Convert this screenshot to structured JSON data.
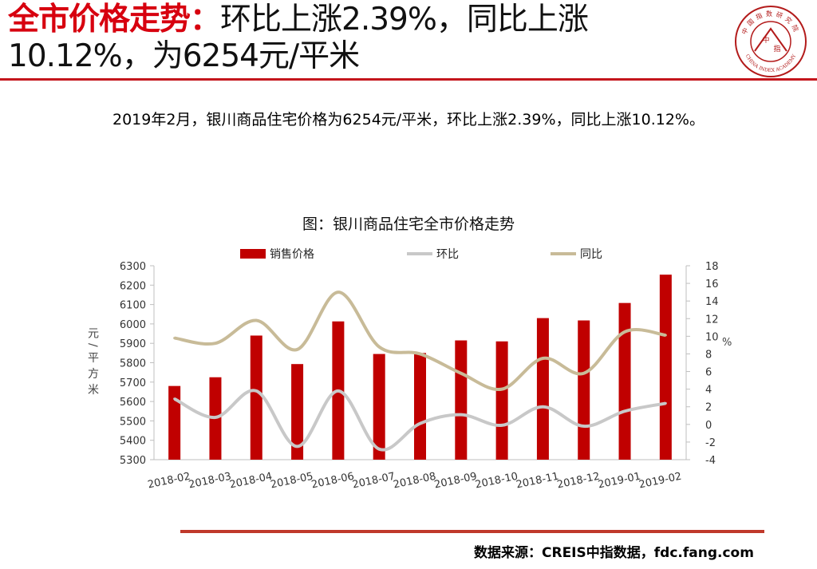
{
  "header": {
    "title_red": "全市价格走势：",
    "title_line1": "环比上涨2.39%，同比上涨",
    "title_line2": "10.12%，为6254元/平米"
  },
  "logo": {
    "text_top": "中国指数研究院",
    "text_bottom": "CHINA INDEX ACADEMY",
    "center_text_1": "中",
    "center_text_2": "指"
  },
  "summary": "2019年2月，银川商品住宅价格为6254元/平米，环比上涨2.39%，同比上涨10.12%。",
  "colors": {
    "bar": "#c00000",
    "mom": "#c8c8c8",
    "yoy": "#c8bb98",
    "accent": "#c4161c"
  },
  "chart_data": {
    "type": "bar",
    "title": "图：银川商品住宅全市价格走势",
    "categories": [
      "2018-02",
      "2018-03",
      "2018-04",
      "2018-05",
      "2018-06",
      "2018-07",
      "2018-08",
      "2018-09",
      "2018-10",
      "2018-11",
      "2018-12",
      "2019-01",
      "2019-02"
    ],
    "series": [
      {
        "name": "销售价格",
        "kind": "bar",
        "axis": "left",
        "values": [
          5680,
          5725,
          5940,
          5793,
          6013,
          5845,
          5850,
          5915,
          5910,
          6030,
          6018,
          6108,
          6254
        ]
      },
      {
        "name": "环比",
        "kind": "line",
        "axis": "right",
        "values": [
          2.9,
          0.8,
          3.8,
          -2.5,
          3.8,
          -2.8,
          0.1,
          1.1,
          -0.1,
          2.0,
          -0.2,
          1.5,
          2.39
        ]
      },
      {
        "name": "同比",
        "kind": "line",
        "axis": "right",
        "values": [
          9.8,
          9.2,
          11.8,
          8.5,
          15.0,
          8.8,
          8.0,
          5.8,
          4.0,
          7.5,
          5.8,
          10.5,
          10.12
        ]
      }
    ],
    "ylabel": "元/平方米",
    "y2label": "%",
    "ylim": [
      5300,
      6300
    ],
    "yticks": [
      "5300",
      "5400",
      "5500",
      "5600",
      "5700",
      "5800",
      "5900",
      "6000",
      "6100",
      "6200",
      "6300"
    ],
    "y2lim": [
      -4,
      18
    ],
    "y2ticks": [
      "-4",
      "-2",
      "0",
      "2",
      "4",
      "6",
      "8",
      "10",
      "12",
      "14",
      "16",
      "18"
    ],
    "legend": "top"
  },
  "footer": {
    "source": "数据来源：CREIS中指数据，fdc.fang.com"
  }
}
